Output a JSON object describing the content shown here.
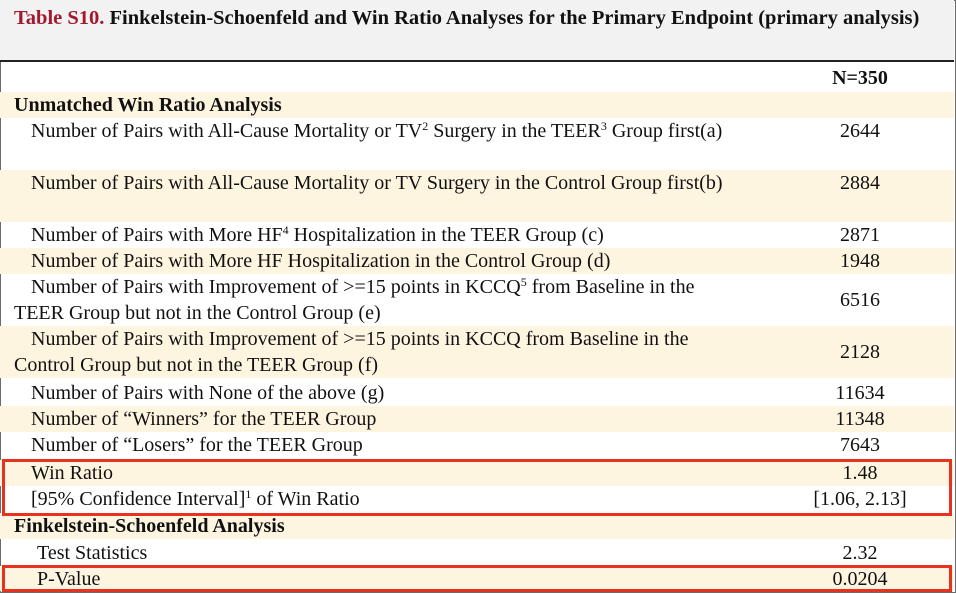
{
  "caption": {
    "label": "Table S10.",
    "title": "Finkelstein-Schoenfeld and Win Ratio Analyses for the Primary Endpoint (primary analysis)"
  },
  "header": {
    "n": "N=350"
  },
  "section1": {
    "title": "Unmatched Win Ratio Analysis"
  },
  "section2": {
    "title": "Finkelstein-Schoenfeld Analysis"
  },
  "rows": {
    "r1": {
      "a": "Number of Pairs with All-Cause Mortality or TV",
      "s1": "2",
      "b": " Surgery in the TEER",
      "s2": "3",
      "c": " Group first(a)",
      "value": "2644"
    },
    "r2": {
      "label": "Number of Pairs with All-Cause Mortality or TV Surgery in the Control Group first(b)",
      "value": "2884"
    },
    "r3": {
      "a": "Number of Pairs with More HF",
      "s1": "4",
      "b": " Hospitalization in the TEER Group (c)",
      "value": "2871"
    },
    "r4": {
      "label": "Number of Pairs with More HF Hospitalization in the Control Group (d)",
      "value": "1948"
    },
    "r5": {
      "a": "Number of Pairs with Improvement of >=15 points in KCCQ",
      "s1": "5",
      "b": " from Baseline in the TEER Group but not in the Control Group (e)",
      "value": "6516"
    },
    "r6": {
      "label": "Number of Pairs with Improvement of >=15 points in KCCQ from Baseline in the Control Group but not in the TEER Group (f)",
      "value": "2128"
    },
    "r7": {
      "label": "Number of Pairs with None of the above (g)",
      "value": "11634"
    },
    "r8": {
      "label": "Number of “Winners” for the TEER Group",
      "value": "11348"
    },
    "r9": {
      "label": "Number of “Losers” for the TEER Group",
      "value": "7643"
    },
    "r10": {
      "label": "Win Ratio",
      "value": "1.48"
    },
    "r11": {
      "a": "[95% Confidence Interval]",
      "s1": "1",
      "b": " of Win Ratio",
      "value": "[1.06, 2.13]"
    },
    "r12": {
      "label": "Test Statistics",
      "value": "2.32"
    },
    "r13": {
      "label": "P-Value",
      "value": "0.0204"
    }
  },
  "colors": {
    "label_red": "#a3182d",
    "row_tan": "#fdf5e0",
    "highlight": "#e8321f",
    "caption_bg": "#f2f2f2"
  }
}
